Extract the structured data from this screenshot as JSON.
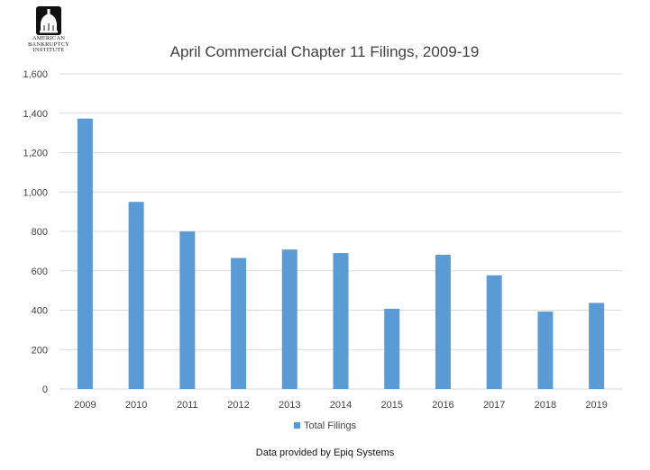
{
  "logo": {
    "lines": [
      "AMERICAN",
      "BANKRUPTCY",
      "INSTITUTE"
    ]
  },
  "footer_note": "Data provided by Epiq Systems",
  "colors": {
    "bar": "#5B9BD5",
    "grid": "#d9d9d9",
    "axis_text": "#404040",
    "title_text": "#404040"
  },
  "chart_data": {
    "type": "bar",
    "title": "April Commercial Chapter 11 Filings, 2009-19",
    "xlabel": "",
    "ylabel": "",
    "categories": [
      "2009",
      "2010",
      "2011",
      "2012",
      "2013",
      "2014",
      "2015",
      "2016",
      "2017",
      "2018",
      "2019"
    ],
    "series": [
      {
        "name": "Total Filings",
        "values": [
          1373,
          950,
          800,
          665,
          708,
          690,
          407,
          681,
          577,
          393,
          437
        ]
      }
    ],
    "ylim": [
      0,
      1600
    ],
    "yticks": [
      0,
      200,
      400,
      600,
      800,
      1000,
      1200,
      1400,
      1600
    ],
    "ytick_labels": [
      "0",
      "200",
      "400",
      "600",
      "800",
      "1,000",
      "1,200",
      "1,400",
      "1,600"
    ],
    "grid": true,
    "legend_position": "bottom"
  }
}
